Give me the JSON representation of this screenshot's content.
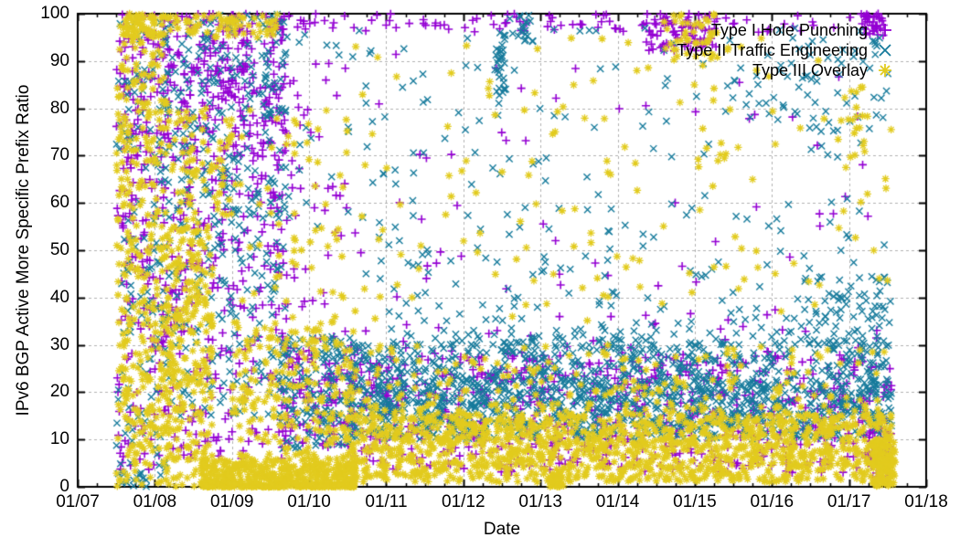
{
  "axes": {
    "xlabel": "Date",
    "ylabel": "IPv6 BGP Active More Specific Prefix Ratio",
    "x_tick_labels": [
      "01/07",
      "01/08",
      "01/09",
      "01/10",
      "01/11",
      "01/12",
      "01/13",
      "01/14",
      "01/15",
      "01/16",
      "01/17",
      "01/18"
    ],
    "x_tick_years": [
      2007,
      2008,
      2009,
      2010,
      2011,
      2012,
      2013,
      2014,
      2015,
      2016,
      2017,
      2018
    ],
    "y_tick_labels": [
      "0",
      "10",
      "20",
      "30",
      "40",
      "50",
      "60",
      "70",
      "80",
      "90",
      "100"
    ],
    "y_tick_values": [
      0,
      10,
      20,
      30,
      40,
      50,
      60,
      70,
      80,
      90,
      100
    ],
    "x_range": [
      2007,
      2018
    ],
    "y_range": [
      0,
      100
    ],
    "grid": true,
    "grid_color": "#b0b0b0",
    "minor_x_ticks_per_interval": 3
  },
  "legend": {
    "position": "top-right",
    "entries": [
      {
        "label": "Type I Hole Punching",
        "marker": "plus",
        "color": "#9400d3"
      },
      {
        "label": "Type II Traffic Engineering",
        "marker": "cross",
        "color": "#177b9c"
      },
      {
        "label": "Type III Overlay",
        "marker": "asterisk",
        "color": "#e2cb1e"
      }
    ]
  },
  "chart_data": {
    "type": "scatter",
    "title": "",
    "xlabel": "Date",
    "ylabel": "IPv6 BGP Active More Specific Prefix Ratio",
    "x_range": [
      2007,
      2018
    ],
    "ylim": [
      0,
      100
    ],
    "x_unit": "year (01/NN = Jan of year 20NN)",
    "data_extent": {
      "x_start": 2007.5,
      "x_end": 2017.6
    },
    "note": "Dense scatter of ~8400 points approximated by uniform rectangular clusters. Each cluster is [x0, x1, y0, y1, count, optional y-bias 'low' meaning points concentrate toward y0].",
    "series": [
      {
        "name": "Type I Hole Punching",
        "marker": "plus",
        "color": "#9400d3",
        "clusters": [
          [
            2007.5,
            2008.15,
            55,
            100,
            130
          ],
          [
            2007.5,
            2008.15,
            2,
            55,
            90
          ],
          [
            2008.1,
            2009.7,
            70,
            100,
            300
          ],
          [
            2008.1,
            2009.7,
            40,
            70,
            150
          ],
          [
            2008.1,
            2009.7,
            5,
            40,
            120
          ],
          [
            2009.6,
            2010.6,
            8,
            30,
            130
          ],
          [
            2009.7,
            2010.5,
            30,
            90,
            50
          ],
          [
            2010.5,
            2017.55,
            3,
            28,
            720
          ],
          [
            2010.5,
            2017.55,
            28,
            92,
            90,
            "low"
          ],
          [
            2008.2,
            2017.4,
            96,
            100,
            120
          ],
          [
            2014.35,
            2015.3,
            92,
            100,
            70
          ],
          [
            2017.15,
            2017.45,
            95,
            100,
            30
          ],
          [
            2017.25,
            2017.55,
            2,
            12,
            50
          ]
        ]
      },
      {
        "name": "Type II Traffic Engineering",
        "marker": "cross",
        "color": "#177b9c",
        "clusters": [
          [
            2007.5,
            2008.15,
            2,
            100,
            140
          ],
          [
            2007.55,
            2007.9,
            0,
            3,
            15
          ],
          [
            2008.1,
            2009.7,
            55,
            100,
            240
          ],
          [
            2008.1,
            2009.7,
            15,
            55,
            140
          ],
          [
            2009.6,
            2010.6,
            8,
            32,
            170
          ],
          [
            2010.5,
            2017.55,
            10,
            30,
            1050
          ],
          [
            2010.5,
            2017.55,
            13,
            23,
            350
          ],
          [
            2010.5,
            2017.55,
            30,
            55,
            230,
            "low"
          ],
          [
            2009.7,
            2017.55,
            55,
            97,
            150
          ],
          [
            2012.42,
            2012.55,
            80,
            96,
            30
          ],
          [
            2012.6,
            2012.9,
            93,
            100,
            20
          ],
          [
            2015.8,
            2017.5,
            75,
            95,
            45
          ],
          [
            2016.3,
            2017.55,
            28,
            45,
            60
          ]
        ]
      },
      {
        "name": "Type III Overlay",
        "marker": "asterisk",
        "color": "#e2cb1e",
        "clusters": [
          [
            2007.5,
            2008.2,
            25,
            95,
            250
          ],
          [
            2007.5,
            2008.2,
            0,
            25,
            120
          ],
          [
            2007.55,
            2008.0,
            95,
            100,
            60
          ],
          [
            2008.0,
            2009.6,
            95,
            100,
            80
          ],
          [
            2008.15,
            2008.75,
            0,
            55,
            260
          ],
          [
            2008.2,
            2009.0,
            55,
            80,
            80
          ],
          [
            2008.6,
            2010.6,
            0,
            6,
            560,
            "low"
          ],
          [
            2009.0,
            2010.6,
            6,
            35,
            220
          ],
          [
            2009.0,
            2010.5,
            35,
            80,
            60
          ],
          [
            2010.5,
            2017.55,
            1,
            15,
            1350
          ],
          [
            2010.5,
            2017.55,
            15,
            30,
            260,
            "low"
          ],
          [
            2010.5,
            2017.55,
            35,
            95,
            150
          ],
          [
            2014.6,
            2015.3,
            90,
            100,
            45
          ],
          [
            2016.85,
            2017.25,
            68,
            85,
            18
          ],
          [
            2013.12,
            2013.3,
            0,
            2.5,
            60
          ],
          [
            2017.3,
            2017.6,
            0,
            10,
            120
          ]
        ]
      }
    ]
  }
}
